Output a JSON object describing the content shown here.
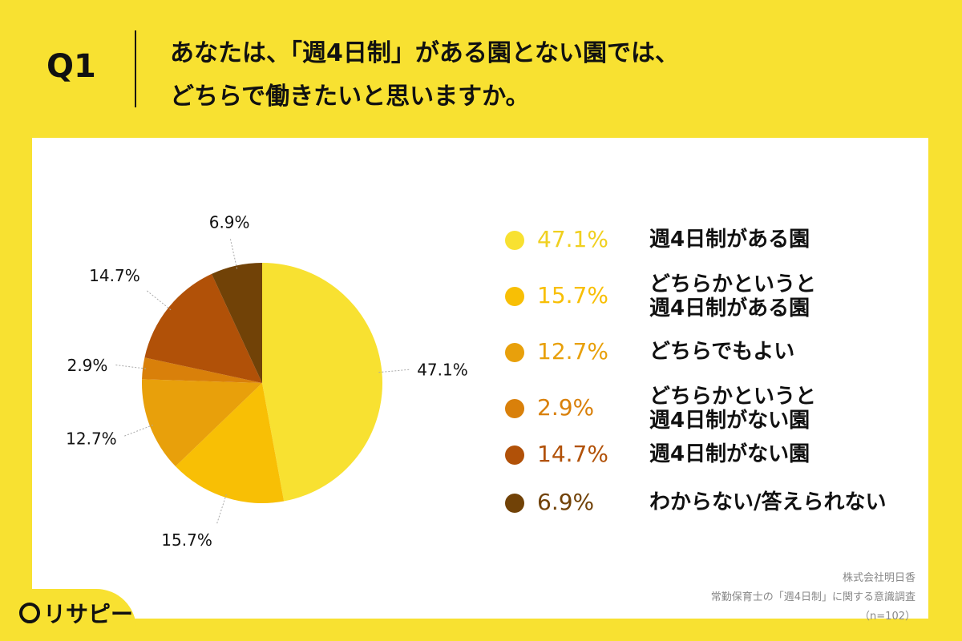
{
  "header": {
    "q_label": "Q1",
    "question_line1": "あなたは、「週4日制」がある園とない園では、",
    "question_line2": "どちらで働きたいと思いますか。"
  },
  "chart_data": {
    "type": "pie",
    "slices": [
      {
        "label": "週4日制がある園",
        "value": 47.1,
        "pct_label": "47.1%",
        "color": "#f8e131"
      },
      {
        "label": "どちらかというと\n週4日制がある園",
        "value": 15.7,
        "pct_label": "15.7%",
        "color": "#f8bf05"
      },
      {
        "label": "どちらでもよい",
        "value": 12.7,
        "pct_label": "12.7%",
        "color": "#e8a00b"
      },
      {
        "label": "どちらかというと\n週4日制がない園",
        "value": 2.9,
        "pct_label": "2.9%",
        "color": "#d9800a"
      },
      {
        "label": "週4日制がない園",
        "value": 14.7,
        "pct_label": "14.7%",
        "color": "#b15108"
      },
      {
        "label": "わからない/答えられない",
        "value": 6.9,
        "pct_label": "6.9%",
        "color": "#714207"
      }
    ],
    "legend_position": "right",
    "start_angle": "top",
    "direction": "clockwise"
  },
  "source": {
    "line1": "株式会社明日香",
    "line2": "常勤保育士の「週4日制」に関する意識調査",
    "line3": "（n=102）"
  },
  "logo": {
    "text": "リサピー"
  }
}
